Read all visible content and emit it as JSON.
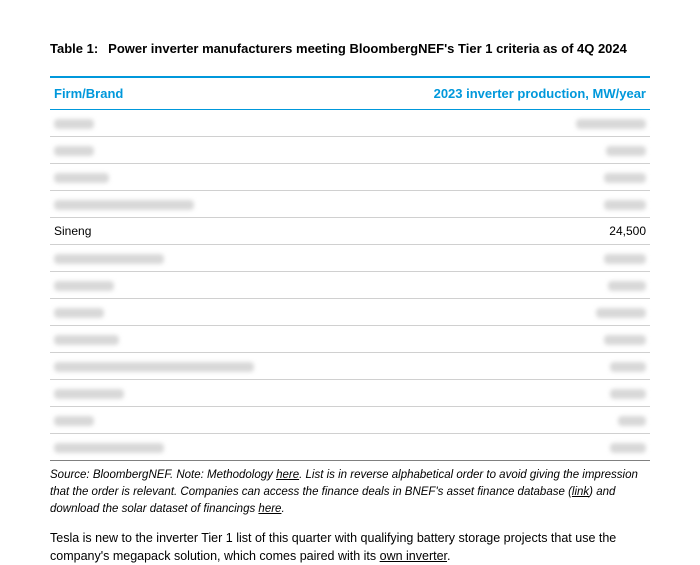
{
  "title": {
    "label": "Table 1:",
    "text": "Power inverter manufacturers meeting BloombergNEF's Tier 1 criteria as of 4Q 2024"
  },
  "table": {
    "columns": [
      "Firm/Brand",
      "2023 inverter production, MW/year"
    ],
    "rows": [
      {
        "firm_blur_width": 40,
        "value_blur_width": 70,
        "visible": false
      },
      {
        "firm_blur_width": 40,
        "value_blur_width": 40,
        "visible": false
      },
      {
        "firm_blur_width": 55,
        "value_blur_width": 42,
        "visible": false
      },
      {
        "firm_blur_width": 140,
        "value_blur_width": 42,
        "visible": false
      },
      {
        "firm": "Sineng",
        "value": "24,500",
        "visible": true
      },
      {
        "firm_blur_width": 110,
        "value_blur_width": 42,
        "visible": false
      },
      {
        "firm_blur_width": 60,
        "value_blur_width": 38,
        "visible": false
      },
      {
        "firm_blur_width": 50,
        "value_blur_width": 50,
        "visible": false
      },
      {
        "firm_blur_width": 65,
        "value_blur_width": 42,
        "visible": false
      },
      {
        "firm_blur_width": 200,
        "value_blur_width": 36,
        "visible": false
      },
      {
        "firm_blur_width": 70,
        "value_blur_width": 36,
        "visible": false
      },
      {
        "firm_blur_width": 40,
        "value_blur_width": 28,
        "visible": false
      },
      {
        "firm_blur_width": 110,
        "value_blur_width": 36,
        "visible": false
      }
    ]
  },
  "source": {
    "prefix": "Source: BloombergNEF. Note: Methodology ",
    "link1": "here",
    "mid1": ". List is in reverse alphabetical order to avoid giving the impression that the order is relevant. Companies can access the finance deals in BNEF's asset finance database (",
    "link2": "link",
    "mid2": ") and download the solar dataset of financings ",
    "link3": "here",
    "suffix": "."
  },
  "body": {
    "text1": "Tesla is new to the inverter Tier 1 list of this quarter with qualifying battery storage projects that use the company's megapack solution, which comes paired with its ",
    "link": "own inverter",
    "text2": "."
  },
  "colors": {
    "accent": "#0098db",
    "blur": "#d8d8d8",
    "border_light": "#d0d0d0",
    "border_dark": "#808080"
  }
}
